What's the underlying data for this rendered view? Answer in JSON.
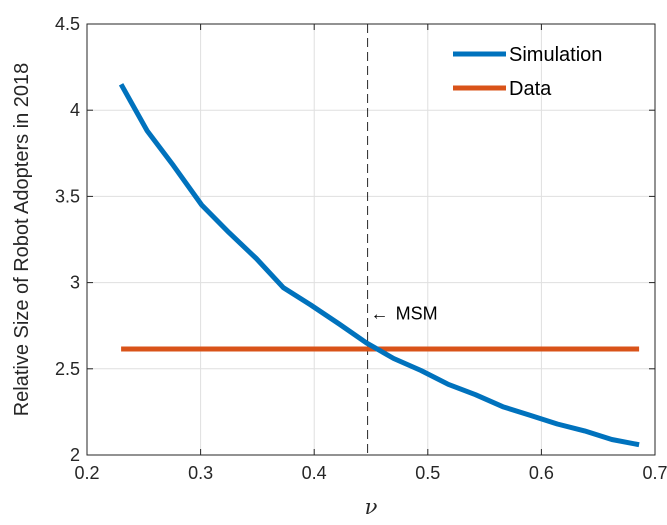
{
  "chart_data": {
    "type": "line",
    "title": "",
    "xlabel": "ν",
    "ylabel": "Relative Size of Robot Adopters in 2018",
    "xlim": [
      0.2,
      0.7
    ],
    "ylim": [
      2,
      4.5
    ],
    "xticks": [
      0.2,
      0.3,
      0.4,
      0.5,
      0.6,
      0.7
    ],
    "xtick_labels": [
      "0.2",
      "0.3",
      "0.4",
      "0.5",
      "0.6",
      "0.7"
    ],
    "yticks": [
      2,
      2.5,
      3,
      3.5,
      4,
      4.5
    ],
    "ytick_labels": [
      "2",
      "2.5",
      "3",
      "3.5",
      "4",
      "4.5"
    ],
    "grid": true,
    "legend_position": "top-right",
    "series": [
      {
        "name": "Simulation",
        "color": "#0072BD",
        "x": [
          0.23,
          0.253,
          0.276,
          0.301,
          0.325,
          0.349,
          0.373,
          0.397,
          0.422,
          0.446,
          0.47,
          0.494,
          0.518,
          0.542,
          0.566,
          0.59,
          0.614,
          0.638,
          0.662,
          0.686
        ],
        "y": [
          4.15,
          3.88,
          3.68,
          3.45,
          3.29,
          3.14,
          2.97,
          2.87,
          2.76,
          2.65,
          2.56,
          2.49,
          2.41,
          2.35,
          2.28,
          2.23,
          2.18,
          2.14,
          2.09,
          2.06
        ]
      },
      {
        "name": "Data",
        "color": "#D95319",
        "x": [
          0.23,
          0.686
        ],
        "y": [
          2.615,
          2.615
        ]
      }
    ],
    "reference_line": {
      "x": 0.447,
      "style": "dashed",
      "color": "#262626"
    },
    "annotation": {
      "text": "MSM",
      "arrow": "←",
      "x": 0.447,
      "y": 2.82
    }
  }
}
